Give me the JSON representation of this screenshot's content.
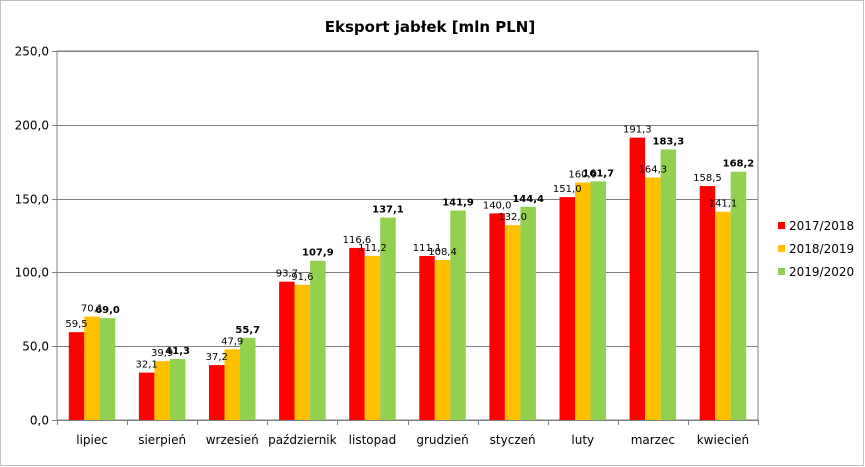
{
  "chart_data": {
    "type": "bar",
    "title": "Eksport jabłek [mln PLN]",
    "xlabel": "",
    "ylabel": "",
    "ylim": [
      0,
      250
    ],
    "yticks": [
      "0,0",
      "50,0",
      "100,0",
      "150,0",
      "200,0",
      "250,0"
    ],
    "ytick_values": [
      0,
      50,
      100,
      150,
      200,
      250
    ],
    "grid": true,
    "legend_position": "right",
    "categories": [
      "lipiec",
      "sierpień",
      "wrzesień",
      "październik",
      "listopad",
      "grudzień",
      "styczeń",
      "luty",
      "marzec",
      "kwiecień"
    ],
    "series": [
      {
        "name": "2017/2018",
        "color": "#ff0000",
        "bold_labels": false,
        "values": [
          59.5,
          32.1,
          37.2,
          93.7,
          116.6,
          111.1,
          140.0,
          151.0,
          191.3,
          158.5
        ],
        "labels": [
          "59,5",
          "32,1",
          "37,2",
          "93,7",
          "116,6",
          "111,1",
          "140,0",
          "151,0",
          "191,3",
          "158,5"
        ]
      },
      {
        "name": "2018/2019",
        "color": "#ffc000",
        "bold_labels": false,
        "values": [
          70.1,
          39.9,
          47.9,
          91.6,
          111.2,
          108.4,
          132.0,
          160.9,
          164.3,
          141.1
        ],
        "labels": [
          "70,1",
          "39,9",
          "47,9",
          "91,6",
          "111,2",
          "108,4",
          "132,0",
          "160,9",
          "164,3",
          "141,1"
        ]
      },
      {
        "name": "2019/2020",
        "color": "#92d050",
        "bold_labels": true,
        "values": [
          69.0,
          41.3,
          55.7,
          107.9,
          137.1,
          141.9,
          144.4,
          161.7,
          183.3,
          168.2
        ],
        "labels": [
          "69,0",
          "41,3",
          "55,7",
          "107,9",
          "137,1",
          "141,9",
          "144,4",
          "161,7",
          "183,3",
          "168,2"
        ]
      }
    ]
  }
}
